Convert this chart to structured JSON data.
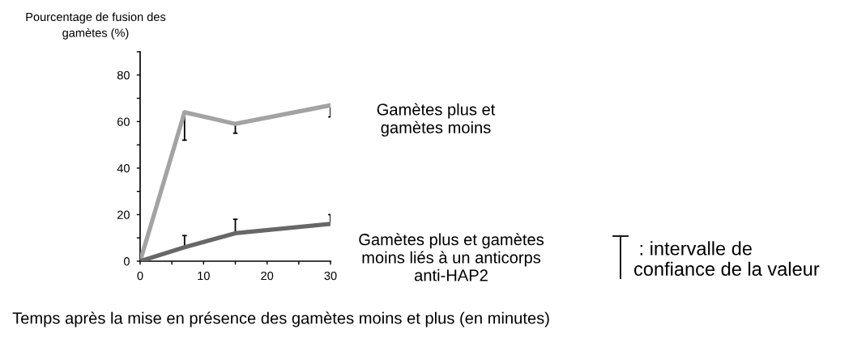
{
  "chart_data": {
    "type": "line",
    "ylabel": "Pourcentage de fusion des\ngamètes (%)",
    "xlabel": "Temps après la mise en présence des gamètes moins et plus (en minutes)",
    "x": [
      0,
      7,
      15,
      30
    ],
    "series": [
      {
        "name": "Gamètes plus et\ngamètes moins",
        "color": "#a3a3a3",
        "values": [
          0,
          64,
          59,
          67
        ],
        "errors": [
          null,
          [
            52,
            64
          ],
          [
            55,
            59
          ],
          [
            62,
            67
          ]
        ]
      },
      {
        "name": "Gamètes plus et gamètes\nmoins liés à un anticorps\nanti-HAP2",
        "color": "#676767",
        "values": [
          0,
          6,
          12,
          16
        ],
        "errors": [
          null,
          [
            6,
            11
          ],
          [
            12,
            18
          ],
          [
            16,
            20
          ]
        ]
      }
    ],
    "xlim": [
      0,
      30
    ],
    "ylim": [
      0,
      90
    ],
    "xticks": [
      0,
      {
        "value": 5,
        "label": null
      },
      10,
      {
        "value": 15,
        "label": null
      },
      20,
      {
        "value": 25,
        "label": null
      },
      30
    ],
    "yticks": [
      0,
      {
        "value": 10,
        "label": null
      },
      20,
      {
        "value": 30,
        "label": null
      },
      40,
      {
        "value": 50,
        "label": null
      },
      60,
      {
        "value": 70,
        "label": null
      },
      80,
      {
        "value": 90,
        "label": null
      }
    ],
    "annotations": [
      " : intervalle de\nconfiance de la valeur"
    ],
    "line_style": "solid"
  }
}
